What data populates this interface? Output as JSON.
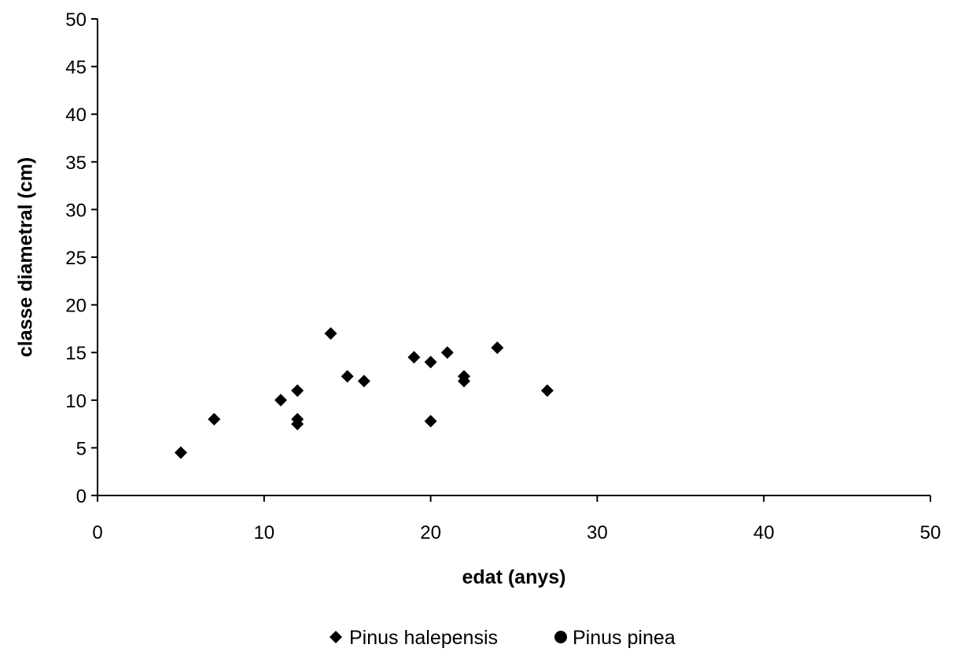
{
  "chart_data": {
    "type": "scatter",
    "title": "",
    "xlabel": "edat (anys)",
    "ylabel": "classe diametral (cm)",
    "xlim": [
      0,
      50
    ],
    "ylim": [
      0,
      50
    ],
    "xticks": [
      0,
      10,
      20,
      30,
      40,
      50
    ],
    "yticks": [
      0,
      5,
      10,
      15,
      20,
      25,
      30,
      35,
      40,
      45,
      50
    ],
    "grid": false,
    "legend_position": "bottom",
    "series": [
      {
        "name": "Pinus halepensis",
        "marker": "diamond",
        "color": "#000000",
        "points": [
          {
            "x": 5,
            "y": 4.5
          },
          {
            "x": 7,
            "y": 8
          },
          {
            "x": 11,
            "y": 10
          },
          {
            "x": 12,
            "y": 8
          },
          {
            "x": 12,
            "y": 7.5
          },
          {
            "x": 12,
            "y": 11
          },
          {
            "x": 14,
            "y": 17
          },
          {
            "x": 15,
            "y": 12.5
          },
          {
            "x": 16,
            "y": 12
          },
          {
            "x": 19,
            "y": 14.5
          },
          {
            "x": 20,
            "y": 14
          },
          {
            "x": 20,
            "y": 7.8
          },
          {
            "x": 21,
            "y": 15
          },
          {
            "x": 22,
            "y": 12.5
          },
          {
            "x": 22,
            "y": 12
          },
          {
            "x": 24,
            "y": 15.5
          },
          {
            "x": 27,
            "y": 11
          }
        ]
      },
      {
        "name": "Pinus pinea",
        "marker": "circle",
        "color": "#000000",
        "points": []
      }
    ]
  }
}
